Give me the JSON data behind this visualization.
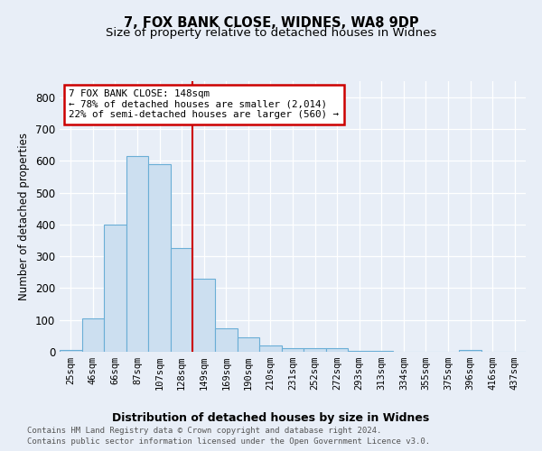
{
  "title": "7, FOX BANK CLOSE, WIDNES, WA8 9DP",
  "subtitle": "Size of property relative to detached houses in Widnes",
  "xlabel": "Distribution of detached houses by size in Widnes",
  "ylabel": "Number of detached properties",
  "bar_labels": [
    "25sqm",
    "46sqm",
    "66sqm",
    "87sqm",
    "107sqm",
    "128sqm",
    "149sqm",
    "169sqm",
    "190sqm",
    "210sqm",
    "231sqm",
    "252sqm",
    "272sqm",
    "293sqm",
    "313sqm",
    "334sqm",
    "355sqm",
    "375sqm",
    "396sqm",
    "416sqm",
    "437sqm"
  ],
  "bar_values": [
    5,
    105,
    400,
    615,
    590,
    325,
    230,
    75,
    45,
    20,
    12,
    10,
    10,
    3,
    3,
    0,
    0,
    0,
    5,
    0,
    0
  ],
  "bar_color": "#ccdff0",
  "bar_edge_color": "#6aaed6",
  "redline_index": 6,
  "annotation_line1": "7 FOX BANK CLOSE: 148sqm",
  "annotation_line2": "← 78% of detached houses are smaller (2,014)",
  "annotation_line3": "22% of semi-detached houses are larger (560) →",
  "annotation_box_color": "#ffffff",
  "annotation_box_edge": "#cc0000",
  "ylim": [
    0,
    850
  ],
  "yticks": [
    0,
    100,
    200,
    300,
    400,
    500,
    600,
    700,
    800
  ],
  "footer_line1": "Contains HM Land Registry data © Crown copyright and database right 2024.",
  "footer_line2": "Contains public sector information licensed under the Open Government Licence v3.0.",
  "bg_color": "#e8eef7",
  "plot_bg_color": "#e8eef7",
  "title_fontsize": 10.5,
  "subtitle_fontsize": 9.5
}
